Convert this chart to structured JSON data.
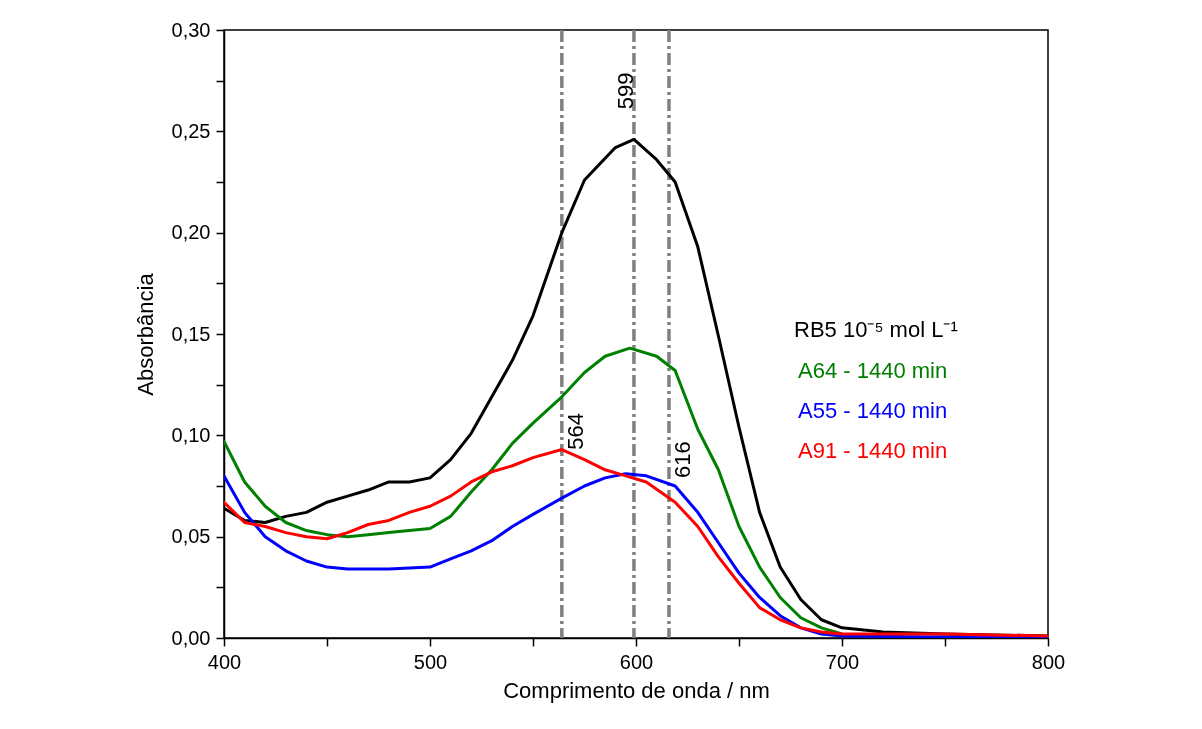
{
  "chart_data": {
    "type": "line",
    "xlabel": "Comprimento de onda / nm",
    "ylabel": "Absorbância",
    "legend_title": "RB5 10⁻⁵ mol L⁻¹",
    "legend": "right",
    "line_style": "solid",
    "xlim": [
      400,
      800
    ],
    "xticks": [
      400,
      {
        "value": 450,
        "label": null
      },
      500,
      {
        "value": 550,
        "label": null
      },
      600,
      {
        "value": 650,
        "label": null
      },
      700,
      {
        "value": 750,
        "label": null
      },
      800
    ],
    "ylim": [
      0,
      0.3
    ],
    "yticks": [
      {
        "value": 0,
        "label": "0,00"
      },
      {
        "value": 0.025,
        "label": null
      },
      {
        "value": 0.05,
        "label": "0,05"
      },
      {
        "value": 0.075,
        "label": null
      },
      {
        "value": 0.1,
        "label": "0,10"
      },
      {
        "value": 0.125,
        "label": null
      },
      {
        "value": 0.15,
        "label": "0,15"
      },
      {
        "value": 0.175,
        "label": null
      },
      {
        "value": 0.2,
        "label": "0,20"
      },
      {
        "value": 0.225,
        "label": null
      },
      {
        "value": 0.25,
        "label": "0,25"
      },
      {
        "value": 0.275,
        "label": null
      },
      {
        "value": 0.3,
        "label": "0,30"
      }
    ],
    "series": [
      {
        "color": "#000000",
        "x": [
          400,
          410,
          420,
          430,
          440,
          450,
          460,
          470,
          480,
          490,
          500,
          510,
          520,
          530,
          540,
          550,
          564,
          575,
          590,
          599,
          610,
          619,
          630,
          640,
          650,
          660,
          670,
          680,
          690,
          700,
          720,
          750,
          800
        ],
        "values": [
          0.064,
          0.058,
          0.057,
          0.06,
          0.062,
          0.067,
          0.07,
          0.073,
          0.077,
          0.077,
          0.079,
          0.088,
          0.101,
          0.119,
          0.137,
          0.159,
          0.2,
          0.226,
          0.242,
          0.246,
          0.236,
          0.225,
          0.193,
          0.149,
          0.104,
          0.062,
          0.035,
          0.019,
          0.009,
          0.005,
          0.003,
          0.002,
          0.001
        ]
      },
      {
        "name": "A64 - 1440 min",
        "color": "#008000",
        "x": [
          400,
          410,
          420,
          430,
          440,
          450,
          460,
          470,
          480,
          490,
          500,
          510,
          520,
          530,
          540,
          550,
          564,
          575,
          585,
          597,
          610,
          619,
          630,
          640,
          650,
          660,
          670,
          680,
          690,
          700
        ],
        "values": [
          0.097,
          0.077,
          0.065,
          0.057,
          0.053,
          0.051,
          0.05,
          0.051,
          0.052,
          0.053,
          0.054,
          0.06,
          0.072,
          0.083,
          0.096,
          0.106,
          0.119,
          0.131,
          0.139,
          0.143,
          0.139,
          0.132,
          0.103,
          0.083,
          0.055,
          0.035,
          0.02,
          0.01,
          0.005,
          0.002
        ]
      },
      {
        "name": "A55 - 1440 min",
        "color": "#0000ff",
        "x": [
          400,
          410,
          420,
          430,
          440,
          450,
          460,
          480,
          500,
          510,
          520,
          530,
          540,
          550,
          564,
          575,
          585,
          595,
          605,
          619,
          630,
          640,
          650,
          660,
          670,
          680,
          690,
          700,
          800
        ],
        "values": [
          0.08,
          0.062,
          0.05,
          0.043,
          0.038,
          0.035,
          0.034,
          0.034,
          0.035,
          0.039,
          0.043,
          0.048,
          0.055,
          0.061,
          0.069,
          0.075,
          0.079,
          0.081,
          0.08,
          0.075,
          0.062,
          0.047,
          0.032,
          0.02,
          0.011,
          0.005,
          0.002,
          0.001,
          0
        ]
      },
      {
        "name": "A91 - 1440 min",
        "color": "#ff0000",
        "x": [
          400,
          410,
          420,
          430,
          440,
          450,
          460,
          470,
          480,
          490,
          500,
          510,
          520,
          530,
          540,
          550,
          564,
          575,
          585,
          595,
          605,
          619,
          630,
          640,
          650,
          660,
          670,
          680,
          690,
          700,
          750,
          800
        ],
        "values": [
          0.067,
          0.057,
          0.055,
          0.052,
          0.05,
          0.049,
          0.052,
          0.056,
          0.058,
          0.062,
          0.065,
          0.07,
          0.077,
          0.082,
          0.085,
          0.089,
          0.093,
          0.088,
          0.083,
          0.08,
          0.077,
          0.067,
          0.055,
          0.04,
          0.027,
          0.015,
          0.009,
          0.005,
          0.003,
          0.002,
          0.002,
          0.001
        ]
      }
    ],
    "ref_lines": [
      {
        "axis": "x",
        "value": 564,
        "color": "#808080",
        "line_style": "dashed"
      },
      {
        "axis": "x",
        "value": 599,
        "color": "#808080",
        "line_style": "dashed"
      },
      {
        "axis": "x",
        "value": 616,
        "color": "#808080",
        "line_style": "dashed"
      }
    ],
    "annotations": [
      {
        "text": "564",
        "x": 564,
        "y": 0.102
      },
      {
        "text": "599",
        "x": 599,
        "y": 0.27
      },
      {
        "text": "616",
        "x": 616,
        "y": 0.088
      }
    ]
  }
}
